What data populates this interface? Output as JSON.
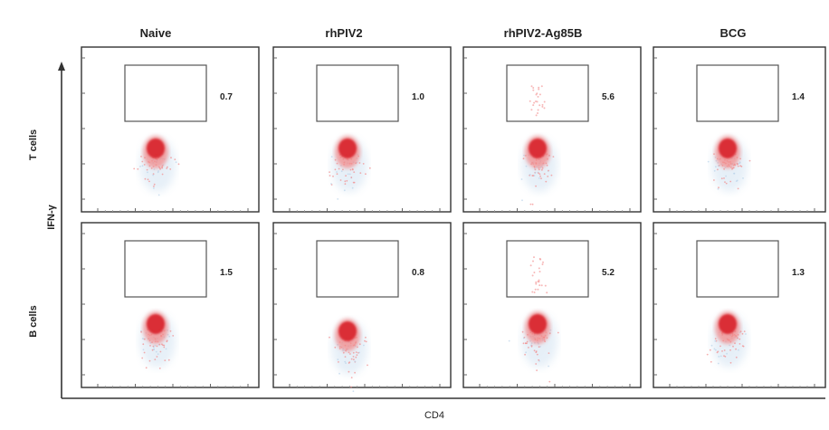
{
  "chart_data": {
    "type": "scatter",
    "description_kind": "flow cytometry density plot grid",
    "columns": [
      "Naive",
      "rhPIV2",
      "rhPIV2-Ag85B",
      "BCG"
    ],
    "rows": [
      "T cells",
      "B cells"
    ],
    "ylabel": "IFN-γ",
    "xlabel": "CD4",
    "gate_percentages": [
      [
        "0.7",
        "1.0",
        "5.6",
        "1.4"
      ],
      [
        "1.5",
        "0.8",
        "5.2",
        "1.3"
      ]
    ],
    "colors": {
      "dense": "#d8202a",
      "mid": "#f28a8a",
      "sparse": "#b9d3ea",
      "gate": "#555555",
      "frame": "#333333"
    }
  }
}
